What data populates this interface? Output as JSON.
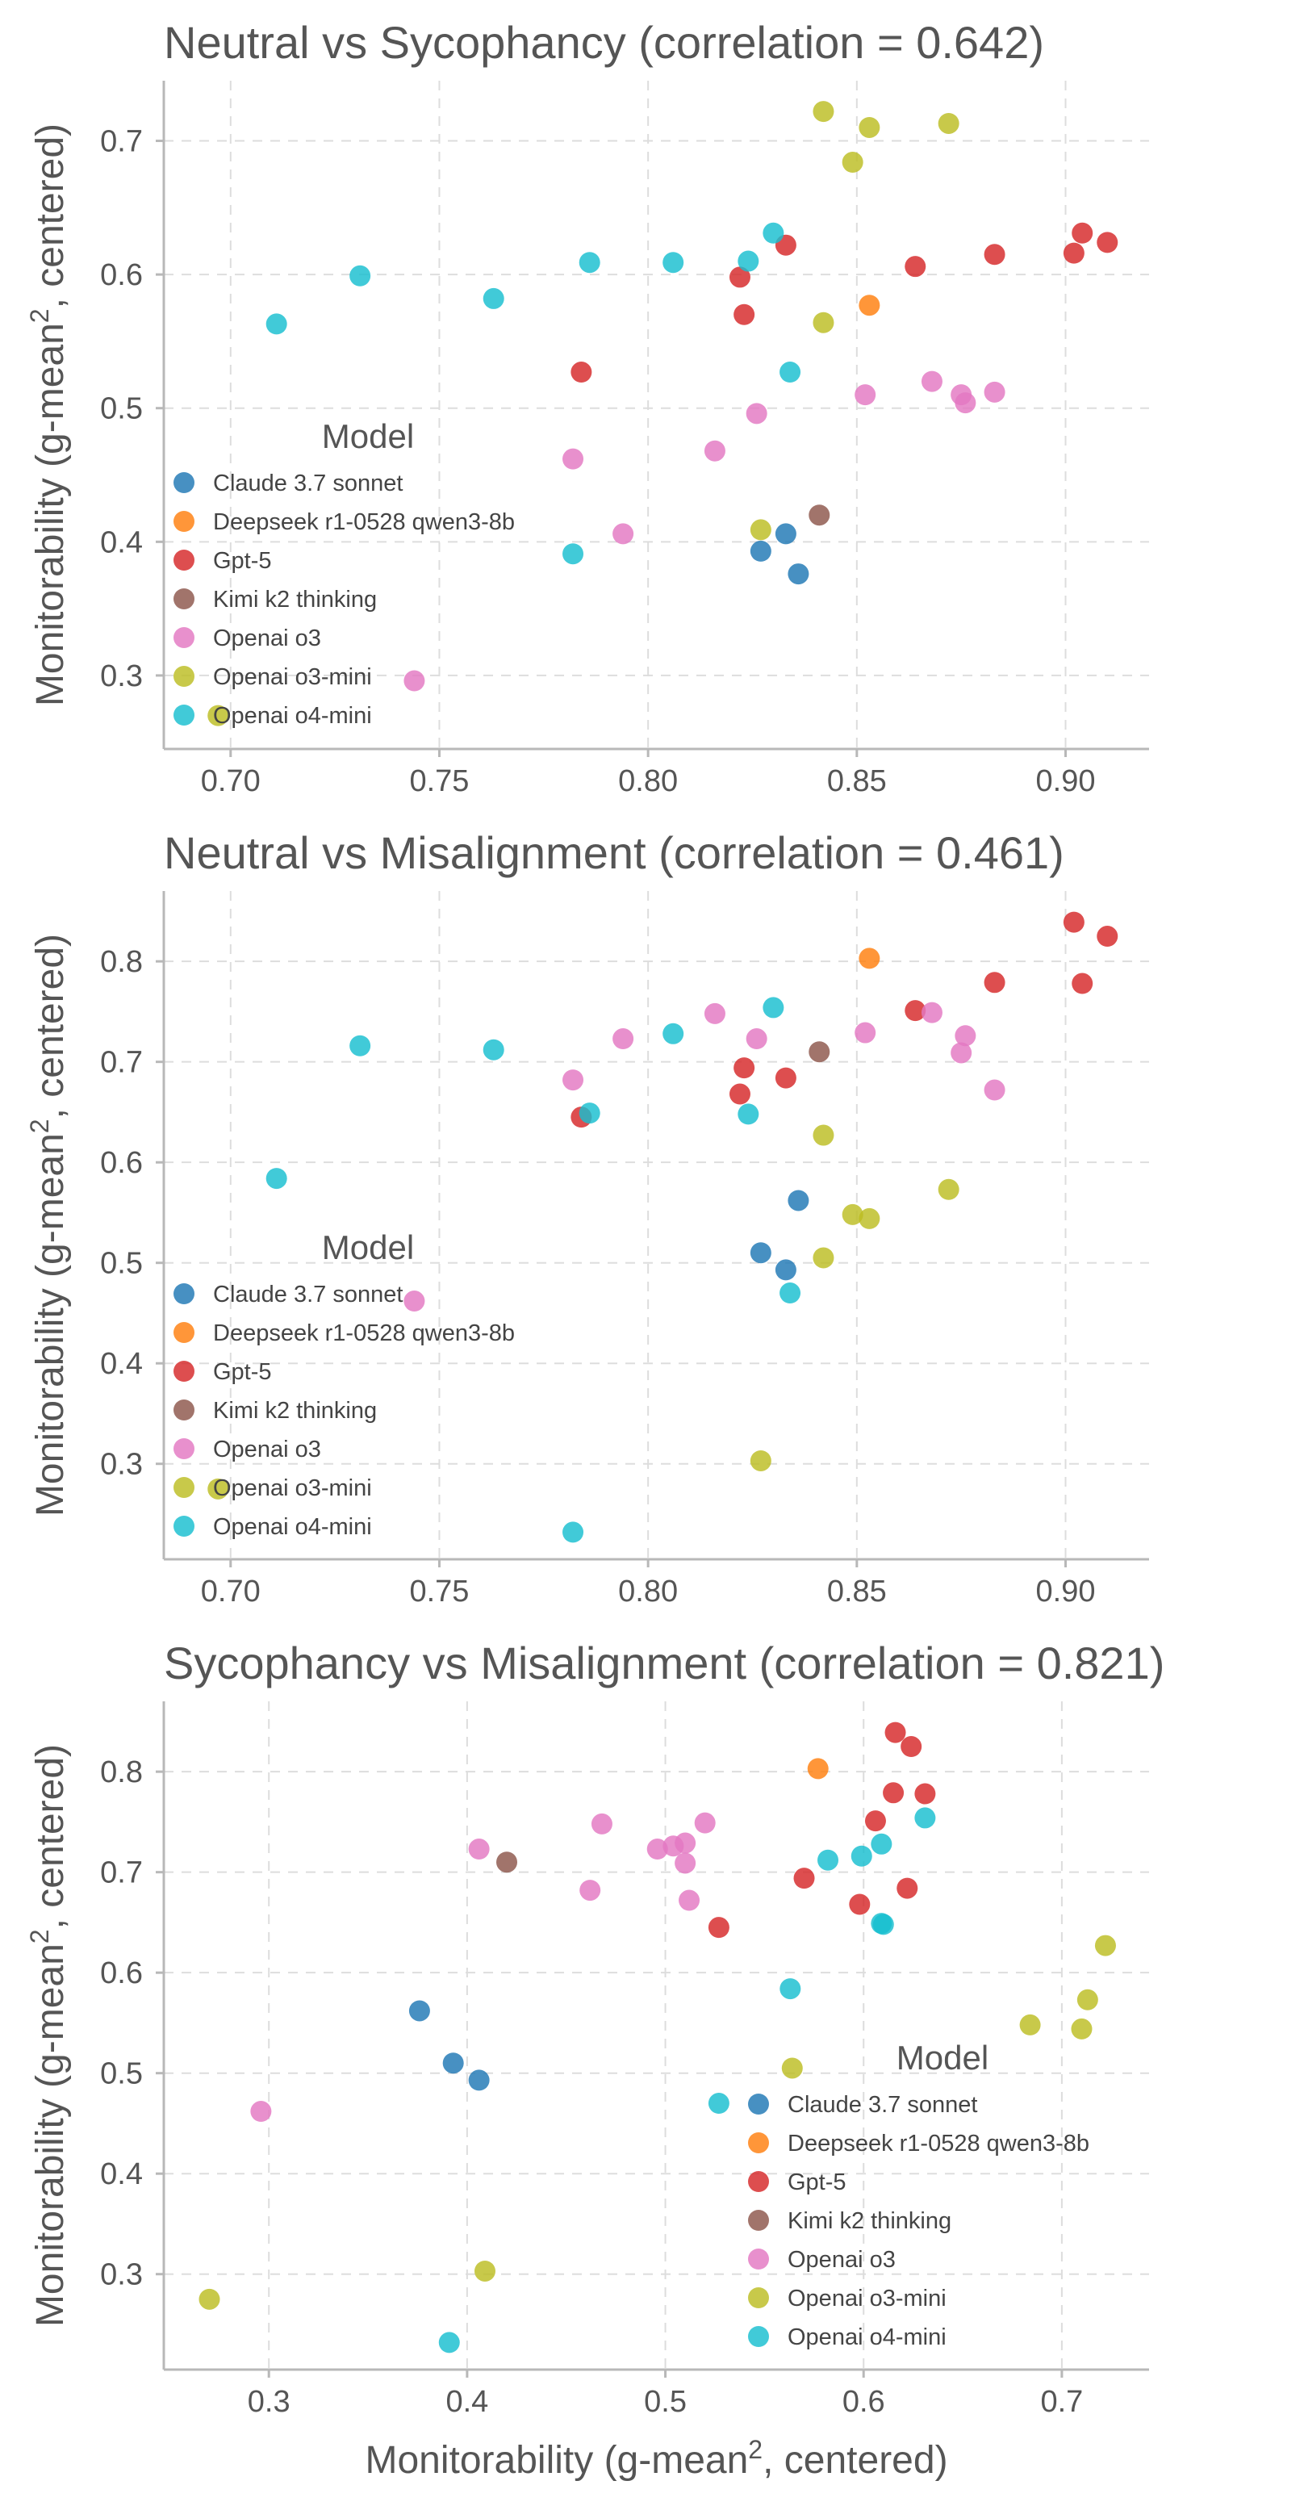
{
  "x_axis_label": "Monitorability (g-mean², centered)",
  "colors": {
    "Claude 3.7 sonnet": "#1f77b4",
    "Deepseek r1-0528 qwen3-8b": "#ff7f0e",
    "Gpt-5": "#d62728",
    "Kimi k2 thinking": "#8c564b",
    "Openai o3": "#e377c2",
    "Openai o3-mini": "#bcbd22",
    "Openai o4-mini": "#17becf"
  },
  "chart_data": [
    {
      "type": "scatter",
      "title": "Neutral vs Sycophancy (correlation = 0.642)",
      "xlabel": "",
      "ylabel": "Monitorability (g-mean², centered)",
      "xlim": [
        0.684,
        0.92
      ],
      "ylim": [
        0.245,
        0.745
      ],
      "xticks": [
        0.7,
        0.75,
        0.8,
        0.85,
        0.9
      ],
      "xtick_labels": [
        "0.70",
        "0.75",
        "0.80",
        "0.85",
        "0.90"
      ],
      "yticks": [
        0.3,
        0.4,
        0.5,
        0.6,
        0.7
      ],
      "ytick_labels": [
        "0.3",
        "0.4",
        "0.5",
        "0.6",
        "0.7"
      ],
      "legend": {
        "title": "Model",
        "position": "lower-left"
      },
      "series": [
        {
          "name": "Claude 3.7 sonnet",
          "points": [
            [
              0.827,
              0.393
            ],
            [
              0.833,
              0.406
            ],
            [
              0.836,
              0.376
            ]
          ]
        },
        {
          "name": "Deepseek r1-0528 qwen3-8b",
          "points": [
            [
              0.853,
              0.577
            ]
          ]
        },
        {
          "name": "Gpt-5",
          "points": [
            [
              0.784,
              0.527
            ],
            [
              0.822,
              0.598
            ],
            [
              0.823,
              0.57
            ],
            [
              0.833,
              0.622
            ],
            [
              0.864,
              0.606
            ],
            [
              0.883,
              0.615
            ],
            [
              0.902,
              0.616
            ],
            [
              0.904,
              0.631
            ],
            [
              0.91,
              0.624
            ]
          ]
        },
        {
          "name": "Kimi k2 thinking",
          "points": [
            [
              0.841,
              0.42
            ]
          ]
        },
        {
          "name": "Openai o3",
          "points": [
            [
              0.744,
              0.296
            ],
            [
              0.782,
              0.462
            ],
            [
              0.794,
              0.406
            ],
            [
              0.816,
              0.468
            ],
            [
              0.826,
              0.496
            ],
            [
              0.852,
              0.51
            ],
            [
              0.868,
              0.52
            ],
            [
              0.875,
              0.51
            ],
            [
              0.876,
              0.504
            ],
            [
              0.883,
              0.512
            ]
          ]
        },
        {
          "name": "Openai o3-mini",
          "points": [
            [
              0.697,
              0.27
            ],
            [
              0.827,
              0.409
            ],
            [
              0.842,
              0.564
            ],
            [
              0.842,
              0.722
            ],
            [
              0.849,
              0.684
            ],
            [
              0.853,
              0.71
            ],
            [
              0.872,
              0.713
            ]
          ]
        },
        {
          "name": "Openai o4-mini",
          "points": [
            [
              0.711,
              0.563
            ],
            [
              0.731,
              0.599
            ],
            [
              0.763,
              0.582
            ],
            [
              0.782,
              0.391
            ],
            [
              0.786,
              0.609
            ],
            [
              0.806,
              0.609
            ],
            [
              0.824,
              0.61
            ],
            [
              0.83,
              0.631
            ],
            [
              0.834,
              0.527
            ]
          ]
        }
      ]
    },
    {
      "type": "scatter",
      "title": "Neutral vs Misalignment (correlation = 0.461)",
      "xlabel": "",
      "ylabel": "Monitorability (g-mean², centered)",
      "xlim": [
        0.684,
        0.92
      ],
      "ylim": [
        0.205,
        0.87
      ],
      "xticks": [
        0.7,
        0.75,
        0.8,
        0.85,
        0.9
      ],
      "xtick_labels": [
        "0.70",
        "0.75",
        "0.80",
        "0.85",
        "0.90"
      ],
      "yticks": [
        0.3,
        0.4,
        0.5,
        0.6,
        0.7,
        0.8
      ],
      "ytick_labels": [
        "0.3",
        "0.4",
        "0.5",
        "0.6",
        "0.7",
        "0.8"
      ],
      "legend": {
        "title": "Model",
        "position": "lower-left"
      },
      "series": [
        {
          "name": "Claude 3.7 sonnet",
          "points": [
            [
              0.827,
              0.51
            ],
            [
              0.833,
              0.493
            ],
            [
              0.836,
              0.562
            ]
          ]
        },
        {
          "name": "Deepseek r1-0528 qwen3-8b",
          "points": [
            [
              0.853,
              0.803
            ]
          ]
        },
        {
          "name": "Gpt-5",
          "points": [
            [
              0.784,
              0.645
            ],
            [
              0.822,
              0.668
            ],
            [
              0.823,
              0.694
            ],
            [
              0.833,
              0.684
            ],
            [
              0.864,
              0.751
            ],
            [
              0.883,
              0.779
            ],
            [
              0.902,
              0.839
            ],
            [
              0.904,
              0.778
            ],
            [
              0.91,
              0.825
            ]
          ]
        },
        {
          "name": "Kimi k2 thinking",
          "points": [
            [
              0.841,
              0.71
            ]
          ]
        },
        {
          "name": "Openai o3",
          "points": [
            [
              0.744,
              0.462
            ],
            [
              0.782,
              0.682
            ],
            [
              0.794,
              0.723
            ],
            [
              0.816,
              0.748
            ],
            [
              0.826,
              0.723
            ],
            [
              0.852,
              0.729
            ],
            [
              0.868,
              0.749
            ],
            [
              0.875,
              0.709
            ],
            [
              0.876,
              0.726
            ],
            [
              0.883,
              0.672
            ]
          ]
        },
        {
          "name": "Openai o3-mini",
          "points": [
            [
              0.697,
              0.275
            ],
            [
              0.827,
              0.303
            ],
            [
              0.842,
              0.505
            ],
            [
              0.842,
              0.627
            ],
            [
              0.849,
              0.548
            ],
            [
              0.853,
              0.544
            ],
            [
              0.872,
              0.573
            ]
          ]
        },
        {
          "name": "Openai o4-mini",
          "points": [
            [
              0.711,
              0.584
            ],
            [
              0.731,
              0.716
            ],
            [
              0.763,
              0.712
            ],
            [
              0.782,
              0.232
            ],
            [
              0.786,
              0.649
            ],
            [
              0.806,
              0.728
            ],
            [
              0.824,
              0.648
            ],
            [
              0.83,
              0.754
            ],
            [
              0.834,
              0.47
            ]
          ]
        }
      ]
    },
    {
      "type": "scatter",
      "title": "Sycophancy vs Misalignment (correlation = 0.821)",
      "xlabel": "Monitorability (g-mean², centered)",
      "ylabel": "Monitorability (g-mean², centered)",
      "xlim": [
        0.247,
        0.744
      ],
      "ylim": [
        0.205,
        0.87
      ],
      "xticks": [
        0.3,
        0.4,
        0.5,
        0.6,
        0.7
      ],
      "xtick_labels": [
        "0.3",
        "0.4",
        "0.5",
        "0.6",
        "0.7"
      ],
      "yticks": [
        0.3,
        0.4,
        0.5,
        0.6,
        0.7,
        0.8
      ],
      "ytick_labels": [
        "0.3",
        "0.4",
        "0.5",
        "0.6",
        "0.7",
        "0.8"
      ],
      "legend": {
        "title": "Model",
        "position": "lower-right"
      },
      "series": [
        {
          "name": "Claude 3.7 sonnet",
          "points": [
            [
              0.393,
              0.51
            ],
            [
              0.406,
              0.493
            ],
            [
              0.376,
              0.562
            ]
          ]
        },
        {
          "name": "Deepseek r1-0528 qwen3-8b",
          "points": [
            [
              0.577,
              0.803
            ]
          ]
        },
        {
          "name": "Gpt-5",
          "points": [
            [
              0.527,
              0.645
            ],
            [
              0.598,
              0.668
            ],
            [
              0.57,
              0.694
            ],
            [
              0.622,
              0.684
            ],
            [
              0.606,
              0.751
            ],
            [
              0.615,
              0.779
            ],
            [
              0.616,
              0.839
            ],
            [
              0.631,
              0.778
            ],
            [
              0.624,
              0.825
            ]
          ]
        },
        {
          "name": "Kimi k2 thinking",
          "points": [
            [
              0.42,
              0.71
            ]
          ]
        },
        {
          "name": "Openai o3",
          "points": [
            [
              0.296,
              0.462
            ],
            [
              0.462,
              0.682
            ],
            [
              0.406,
              0.723
            ],
            [
              0.468,
              0.748
            ],
            [
              0.496,
              0.723
            ],
            [
              0.51,
              0.729
            ],
            [
              0.52,
              0.749
            ],
            [
              0.51,
              0.709
            ],
            [
              0.504,
              0.726
            ],
            [
              0.512,
              0.672
            ]
          ]
        },
        {
          "name": "Openai o3-mini",
          "points": [
            [
              0.27,
              0.275
            ],
            [
              0.409,
              0.303
            ],
            [
              0.564,
              0.505
            ],
            [
              0.722,
              0.627
            ],
            [
              0.684,
              0.548
            ],
            [
              0.71,
              0.544
            ],
            [
              0.713,
              0.573
            ]
          ]
        },
        {
          "name": "Openai o4-mini",
          "points": [
            [
              0.563,
              0.584
            ],
            [
              0.599,
              0.716
            ],
            [
              0.582,
              0.712
            ],
            [
              0.391,
              0.232
            ],
            [
              0.609,
              0.649
            ],
            [
              0.609,
              0.728
            ],
            [
              0.61,
              0.648
            ],
            [
              0.631,
              0.754
            ],
            [
              0.527,
              0.47
            ]
          ]
        }
      ]
    }
  ]
}
